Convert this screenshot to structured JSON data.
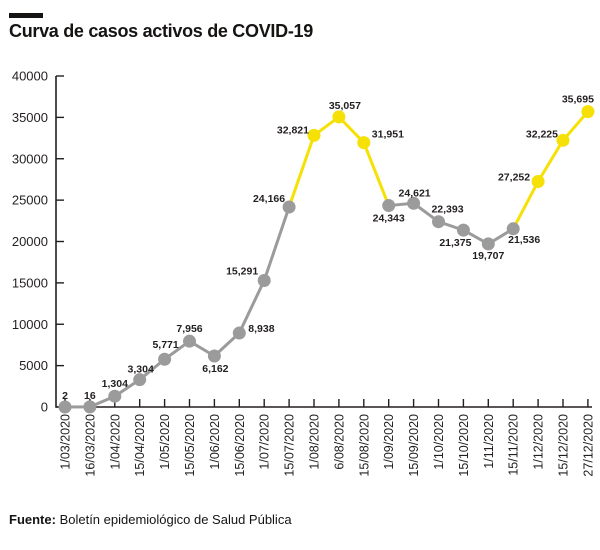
{
  "header": {
    "title": "Curva de casos activos de COVID-19"
  },
  "footer": {
    "source_label": "Fuente:",
    "source_text": " Boletín epidemiológico de Salud Pública"
  },
  "chart_data": {
    "type": "line",
    "title": "Curva de casos activos de COVID-19",
    "xlabel": "",
    "ylabel": "",
    "ylim": [
      0,
      40000
    ],
    "yticks": [
      0,
      5000,
      10000,
      15000,
      20000,
      25000,
      30000,
      35000,
      40000
    ],
    "grid": false,
    "legend": "none",
    "categories": [
      "1/03/2020",
      "16/03/2020",
      "1/04/2020",
      "15/04/2020",
      "1/05/2020",
      "15/05/2020",
      "1/06/2020",
      "15/06/2020",
      "1/07/2020",
      "15/07/2020",
      "1/08/2020",
      "6/08/2020",
      "15/08/2020",
      "1/09/2020",
      "15/09/2020",
      "1/10/2020",
      "15/10/2020",
      "1/11/2020",
      "15/11/2020",
      "1/12/2020",
      "15/12/2020",
      "27/12/2020"
    ],
    "series": [
      {
        "name": "Casos activos",
        "values": [
          2,
          16,
          1304,
          3304,
          5771,
          7956,
          6162,
          8938,
          15291,
          24166,
          32821,
          35057,
          31951,
          24343,
          24621,
          22393,
          21375,
          19707,
          21536,
          27252,
          32225,
          35695
        ],
        "labels": [
          "2",
          "16",
          "1,304",
          "3,304",
          "5,771",
          "7,956",
          "6,162",
          "8,938",
          "15,291",
          "24,166",
          "32,821",
          "35,057",
          "31,951",
          "24,343",
          "24,621",
          "22,393",
          "21,375",
          "19,707",
          "21,536",
          "27,252",
          "32,225",
          "35,695"
        ],
        "point_colors": [
          "gray",
          "gray",
          "gray",
          "gray",
          "gray",
          "gray",
          "gray",
          "gray",
          "gray",
          "gray",
          "yellow",
          "yellow",
          "yellow",
          "gray",
          "gray",
          "gray",
          "gray",
          "gray",
          "gray",
          "yellow",
          "yellow",
          "yellow"
        ]
      }
    ],
    "colors": {
      "gray": "#9b9b9b",
      "yellow": "#f5e106",
      "axis": "#231f20",
      "text": "#231f20"
    }
  }
}
